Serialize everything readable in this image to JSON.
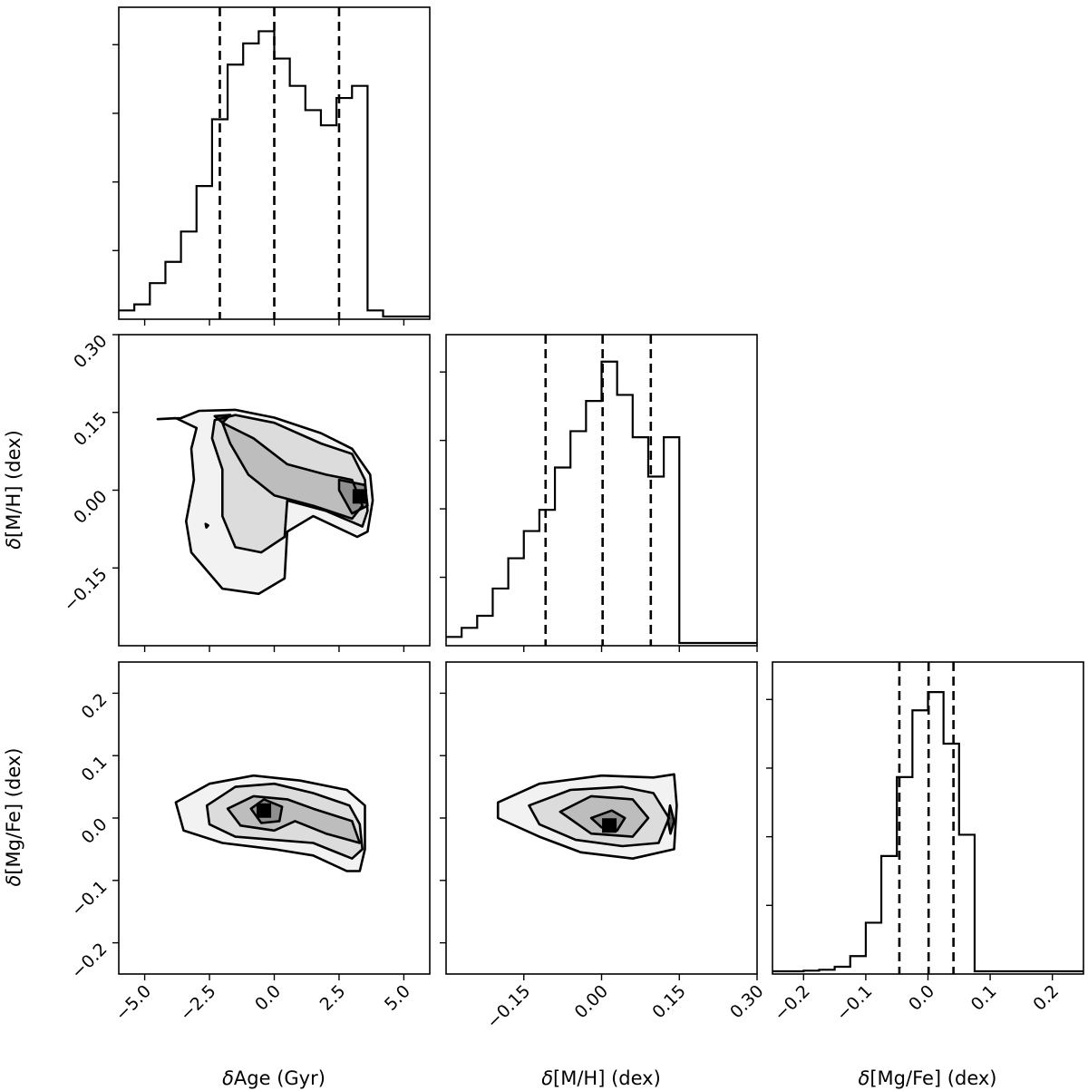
{
  "chart_data": {
    "type": "corner",
    "parameters": [
      {
        "key": "age",
        "label_symbol": "δ",
        "label_text": "Age (Gyr)",
        "range": [
          -6.0,
          6.0
        ],
        "ticks": [
          "−5.0",
          "−2.5",
          "0.0",
          "2.5",
          "5.0"
        ],
        "tick_values": [
          -5.0,
          -2.5,
          0.0,
          2.5,
          5.0
        ]
      },
      {
        "key": "mh",
        "label_symbol": "δ",
        "label_text": "[M/H] (dex)",
        "range": [
          -0.3,
          0.3
        ],
        "ticks": [
          "−0.15",
          "0.00",
          "0.15",
          "0.30"
        ],
        "tick_values": [
          -0.15,
          0.0,
          0.15,
          0.3
        ]
      },
      {
        "key": "mgfe",
        "label_symbol": "δ",
        "label_text": "[Mg/Fe] (dex)",
        "range": [
          -0.25,
          0.25
        ],
        "ticks": [
          "−0.2",
          "−0.1",
          "0.0",
          "0.1",
          "0.2"
        ],
        "tick_values": [
          -0.2,
          -0.1,
          0.0,
          0.1,
          0.2
        ]
      }
    ],
    "histograms": [
      {
        "param": "age",
        "edges": [
          -6.0,
          -5.4,
          -4.8,
          -4.2,
          -3.6,
          -3.0,
          -2.4,
          -1.8,
          -1.2,
          -0.6,
          0.0,
          0.6,
          1.2,
          1.8,
          2.4,
          3.0,
          3.6,
          4.2,
          4.8,
          5.4,
          6.0
        ],
        "counts": [
          0.02,
          0.04,
          0.11,
          0.18,
          0.28,
          0.43,
          0.65,
          0.83,
          0.9,
          0.94,
          0.85,
          0.76,
          0.68,
          0.63,
          0.72,
          0.76,
          0.02,
          0.0,
          0.0,
          0.0
        ],
        "quantiles": [
          -2.1,
          0.0,
          2.5
        ]
      },
      {
        "param": "mh",
        "edges": [
          -0.3,
          -0.27,
          -0.24,
          -0.21,
          -0.18,
          -0.15,
          -0.12,
          -0.09,
          -0.06,
          -0.03,
          0.0,
          0.03,
          0.06,
          0.09,
          0.12,
          0.15,
          0.18,
          0.21,
          0.24,
          0.27,
          0.3
        ],
        "counts": [
          0.02,
          0.05,
          0.09,
          0.18,
          0.28,
          0.37,
          0.44,
          0.58,
          0.7,
          0.8,
          0.93,
          0.82,
          0.68,
          0.55,
          0.68,
          0.0,
          0.0,
          0.0,
          0.0,
          0.0
        ],
        "quantiles": [
          -0.108,
          0.002,
          0.095
        ]
      },
      {
        "param": "mgfe",
        "edges": [
          -0.25,
          -0.225,
          -0.2,
          -0.175,
          -0.15,
          -0.125,
          -0.1,
          -0.075,
          -0.05,
          -0.025,
          0.0,
          0.025,
          0.05,
          0.075,
          0.1,
          0.125,
          0.15,
          0.175,
          0.2,
          0.225,
          0.25
        ],
        "counts": [
          0.0,
          0.0,
          0.002,
          0.005,
          0.015,
          0.05,
          0.16,
          0.38,
          0.64,
          0.86,
          0.92,
          0.75,
          0.45,
          0.0,
          0.0,
          0.0,
          0.0,
          0.0,
          0.0,
          0.0
        ],
        "quantiles": [
          -0.046,
          0.001,
          0.041
        ]
      }
    ],
    "joint": [
      {
        "x": "age",
        "y": "mh",
        "contours": [
          [
            [
              -4.5,
              0.137
            ],
            [
              -3.6,
              0.139
            ],
            [
              -2.9,
              0.153
            ],
            [
              -1.5,
              0.155
            ],
            [
              0.0,
              0.14
            ],
            [
              1.8,
              0.11
            ],
            [
              3.0,
              0.08
            ],
            [
              3.7,
              0.03
            ],
            [
              3.8,
              -0.02
            ],
            [
              3.6,
              -0.08
            ],
            [
              3.2,
              -0.09
            ],
            [
              1.5,
              -0.05
            ],
            [
              0.5,
              -0.08
            ],
            [
              0.4,
              -0.17
            ],
            [
              -0.6,
              -0.2
            ],
            [
              -2.0,
              -0.19
            ],
            [
              -3.2,
              -0.12
            ],
            [
              -3.4,
              -0.06
            ],
            [
              -3.1,
              0.02
            ],
            [
              -3.2,
              0.08
            ],
            [
              -3.0,
              0.12
            ],
            [
              -3.8,
              0.139
            ],
            [
              -4.5,
              0.137
            ]
          ],
          [
            [
              -2.3,
              0.135
            ],
            [
              -1.5,
              0.145
            ],
            [
              0.0,
              0.13
            ],
            [
              1.8,
              0.09
            ],
            [
              3.0,
              0.07
            ],
            [
              3.5,
              0.02
            ],
            [
              3.6,
              -0.04
            ],
            [
              3.4,
              -0.07
            ],
            [
              2.0,
              -0.04
            ],
            [
              0.5,
              -0.02
            ],
            [
              0.4,
              -0.09
            ],
            [
              -0.5,
              -0.12
            ],
            [
              -1.5,
              -0.11
            ],
            [
              -2.0,
              -0.05
            ],
            [
              -2.0,
              0.04
            ],
            [
              -2.4,
              0.1
            ],
            [
              -2.3,
              0.135
            ]
          ],
          [
            [
              -2.0,
              0.13
            ],
            [
              -0.8,
              0.1
            ],
            [
              0.5,
              0.05
            ],
            [
              2.0,
              0.03
            ],
            [
              3.0,
              0.02
            ],
            [
              3.4,
              -0.03
            ],
            [
              3.0,
              -0.055
            ],
            [
              1.5,
              -0.03
            ],
            [
              0.0,
              -0.01
            ],
            [
              -1.0,
              0.03
            ],
            [
              -1.7,
              0.09
            ],
            [
              -2.0,
              0.13
            ]
          ],
          [
            [
              2.5,
              0.02
            ],
            [
              3.5,
              0.01
            ],
            [
              3.6,
              -0.03
            ],
            [
              3.0,
              -0.045
            ],
            [
              2.5,
              0.0
            ],
            [
              2.5,
              0.02
            ]
          ],
          [
            [
              -2.3,
              0.143
            ],
            [
              -1.7,
              0.145
            ],
            [
              -2.0,
              0.13
            ],
            [
              -2.3,
              0.143
            ]
          ],
          [
            [
              -2.65,
              -0.065
            ],
            [
              -2.55,
              -0.068
            ],
            [
              -2.62,
              -0.072
            ],
            [
              -2.65,
              -0.065
            ]
          ]
        ],
        "density_peak": [
          3.3,
          -0.012
        ]
      },
      {
        "x": "age",
        "y": "mgfe",
        "contours": [
          [
            [
              -3.8,
              0.025
            ],
            [
              -2.5,
              0.055
            ],
            [
              -0.8,
              0.068
            ],
            [
              1.0,
              0.06
            ],
            [
              2.8,
              0.045
            ],
            [
              3.5,
              0.02
            ],
            [
              3.5,
              -0.05
            ],
            [
              3.3,
              -0.085
            ],
            [
              2.8,
              -0.085
            ],
            [
              1.5,
              -0.06
            ],
            [
              0.0,
              -0.05
            ],
            [
              -2.0,
              -0.04
            ],
            [
              -3.5,
              -0.02
            ],
            [
              -3.8,
              0.025
            ]
          ],
          [
            [
              -2.6,
              0.02
            ],
            [
              -1.5,
              0.05
            ],
            [
              0.0,
              0.055
            ],
            [
              1.5,
              0.04
            ],
            [
              2.9,
              0.02
            ],
            [
              3.3,
              -0.01
            ],
            [
              3.4,
              -0.05
            ],
            [
              3.0,
              -0.065
            ],
            [
              1.5,
              -0.04
            ],
            [
              0.0,
              -0.035
            ],
            [
              -1.5,
              -0.03
            ],
            [
              -2.5,
              -0.01
            ],
            [
              -2.6,
              0.02
            ]
          ],
          [
            [
              -1.8,
              0.015
            ],
            [
              -0.8,
              0.035
            ],
            [
              0.5,
              0.03
            ],
            [
              1.5,
              0.015
            ],
            [
              3.0,
              -0.005
            ],
            [
              3.3,
              -0.04
            ],
            [
              2.0,
              -0.025
            ],
            [
              0.8,
              -0.005
            ],
            [
              0.0,
              -0.02
            ],
            [
              -1.3,
              -0.012
            ],
            [
              -1.8,
              0.015
            ]
          ],
          [
            [
              -0.9,
              0.015
            ],
            [
              -0.4,
              0.03
            ],
            [
              0.3,
              0.018
            ],
            [
              0.2,
              -0.005
            ],
            [
              -0.5,
              -0.008
            ],
            [
              -0.9,
              0.015
            ]
          ]
        ],
        "density_peak": [
          -0.4,
          0.012
        ]
      },
      {
        "x": "mh",
        "y": "mgfe",
        "contours": [
          [
            [
              -0.2,
              0.025
            ],
            [
              -0.12,
              0.055
            ],
            [
              0.0,
              0.068
            ],
            [
              0.1,
              0.065
            ],
            [
              0.14,
              0.07
            ],
            [
              0.145,
              0.02
            ],
            [
              0.14,
              -0.05
            ],
            [
              0.06,
              -0.065
            ],
            [
              -0.04,
              -0.055
            ],
            [
              -0.12,
              -0.03
            ],
            [
              -0.2,
              0.0
            ],
            [
              -0.2,
              0.025
            ]
          ],
          [
            [
              -0.14,
              0.02
            ],
            [
              -0.06,
              0.045
            ],
            [
              0.04,
              0.05
            ],
            [
              0.1,
              0.04
            ],
            [
              0.13,
              0.0
            ],
            [
              0.11,
              -0.04
            ],
            [
              0.04,
              -0.045
            ],
            [
              -0.05,
              -0.035
            ],
            [
              -0.12,
              -0.01
            ],
            [
              -0.14,
              0.02
            ]
          ],
          [
            [
              -0.08,
              0.01
            ],
            [
              -0.02,
              0.035
            ],
            [
              0.06,
              0.03
            ],
            [
              0.09,
              0.0
            ],
            [
              0.06,
              -0.03
            ],
            [
              -0.02,
              -0.025
            ],
            [
              -0.08,
              0.01
            ]
          ],
          [
            [
              -0.02,
              0.0
            ],
            [
              0.02,
              0.012
            ],
            [
              0.045,
              0.0
            ],
            [
              0.03,
              -0.02
            ],
            [
              0.0,
              -0.015
            ],
            [
              -0.02,
              0.0
            ]
          ],
          [
            [
              0.132,
              0.02
            ],
            [
              0.14,
              -0.005
            ],
            [
              0.133,
              -0.025
            ],
            [
              0.128,
              -0.005
            ],
            [
              0.132,
              0.02
            ]
          ]
        ],
        "density_peak": [
          0.015,
          -0.012
        ]
      }
    ]
  }
}
